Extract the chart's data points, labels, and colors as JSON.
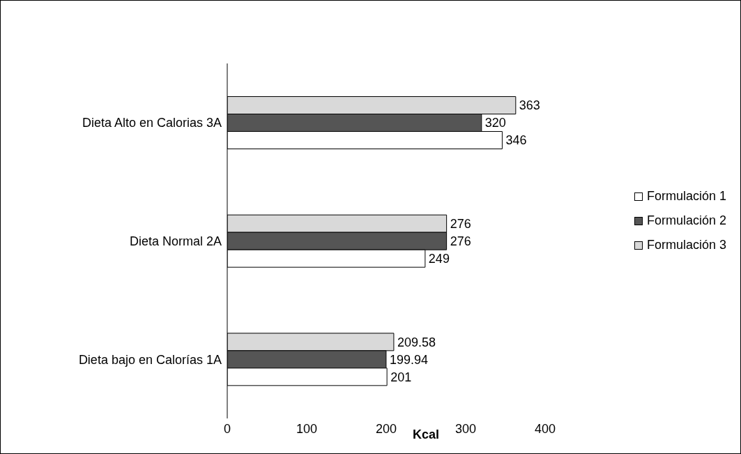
{
  "chart_data": {
    "type": "bar",
    "orientation": "horizontal",
    "xlabel": "Kcal",
    "categories": [
      "Dieta  Alto  en Calorias 3A",
      "Dieta  Normal 2A",
      "Dieta bajo en Calorías 1A"
    ],
    "series": [
      {
        "name": "Formulación 1",
        "color": "#ffffff",
        "values": [
          346,
          249,
          201
        ]
      },
      {
        "name": "Formulación 2",
        "color": "#555555",
        "values": [
          320,
          276,
          199.94
        ]
      },
      {
        "name": "Formulación 3",
        "color": "#d9d9d9",
        "values": [
          363,
          276,
          209.58
        ]
      }
    ],
    "xlim": [
      0,
      400
    ],
    "xticks": [
      0,
      100,
      200,
      300,
      400
    ],
    "grid": false,
    "legend": "right",
    "data_labels": true
  }
}
